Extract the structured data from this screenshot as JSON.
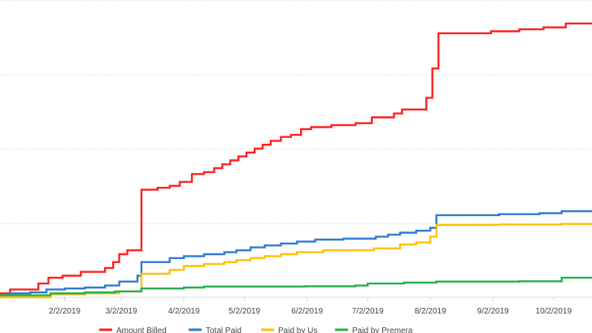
{
  "chart_data": {
    "type": "line",
    "title": "",
    "xlabel": "",
    "ylabel": "",
    "grid": "horizontal",
    "legend_position": "bottom",
    "x_tick_labels": [
      "2/2/2019",
      "3/2/2019",
      "4/2/2019",
      "5/2/2019",
      "6/2/2019",
      "7/2/2019",
      "8/2/2019",
      "9/2/2019",
      "10/2/2019"
    ],
    "x_range": [
      "2019-01-01",
      "2019-10-21"
    ],
    "series": [
      {
        "name": "Amount Billed",
        "color": "#ff2020",
        "style": "step",
        "points": [
          [
            "2019-01-01",
            0.02
          ],
          [
            "2019-01-06",
            0.04
          ],
          [
            "2019-01-20",
            0.07
          ],
          [
            "2019-01-25",
            0.1
          ],
          [
            "2019-02-01",
            0.11
          ],
          [
            "2019-02-10",
            0.13
          ],
          [
            "2019-02-22",
            0.15
          ],
          [
            "2019-02-26",
            0.18
          ],
          [
            "2019-03-01",
            0.22
          ],
          [
            "2019-03-05",
            0.24
          ],
          [
            "2019-03-12",
            0.55
          ],
          [
            "2019-03-20",
            0.56
          ],
          [
            "2019-03-26",
            0.57
          ],
          [
            "2019-03-31",
            0.59
          ],
          [
            "2019-04-06",
            0.63
          ],
          [
            "2019-04-12",
            0.64
          ],
          [
            "2019-04-17",
            0.66
          ],
          [
            "2019-04-21",
            0.68
          ],
          [
            "2019-04-25",
            0.7
          ],
          [
            "2019-04-29",
            0.72
          ],
          [
            "2019-05-03",
            0.74
          ],
          [
            "2019-05-07",
            0.76
          ],
          [
            "2019-05-11",
            0.78
          ],
          [
            "2019-05-15",
            0.8
          ],
          [
            "2019-05-20",
            0.82
          ],
          [
            "2019-05-25",
            0.83
          ],
          [
            "2019-05-30",
            0.86
          ],
          [
            "2019-06-04",
            0.87
          ],
          [
            "2019-06-14",
            0.88
          ],
          [
            "2019-06-26",
            0.89
          ],
          [
            "2019-07-04",
            0.92
          ],
          [
            "2019-07-15",
            0.94
          ],
          [
            "2019-07-19",
            0.96
          ],
          [
            "2019-07-31",
            1.02
          ],
          [
            "2019-08-03",
            1.17
          ],
          [
            "2019-08-06",
            1.35
          ],
          [
            "2019-09-01",
            1.36
          ],
          [
            "2019-09-15",
            1.37
          ],
          [
            "2019-09-27",
            1.38
          ],
          [
            "2019-10-08",
            1.4
          ]
        ]
      },
      {
        "name": "Total Paid",
        "color": "#2f7ad0",
        "style": "step",
        "points": [
          [
            "2019-01-01",
            0.01
          ],
          [
            "2019-01-06",
            0.02
          ],
          [
            "2019-01-16",
            0.025
          ],
          [
            "2019-01-24",
            0.04
          ],
          [
            "2019-02-02",
            0.045
          ],
          [
            "2019-02-12",
            0.05
          ],
          [
            "2019-02-22",
            0.06
          ],
          [
            "2019-03-01",
            0.08
          ],
          [
            "2019-03-10",
            0.11
          ],
          [
            "2019-03-12",
            0.18
          ],
          [
            "2019-03-26",
            0.2
          ],
          [
            "2019-04-02",
            0.21
          ],
          [
            "2019-04-12",
            0.22
          ],
          [
            "2019-04-22",
            0.23
          ],
          [
            "2019-04-28",
            0.24
          ],
          [
            "2019-05-05",
            0.255
          ],
          [
            "2019-05-12",
            0.265
          ],
          [
            "2019-05-20",
            0.275
          ],
          [
            "2019-05-28",
            0.285
          ],
          [
            "2019-06-06",
            0.295
          ],
          [
            "2019-06-20",
            0.3
          ],
          [
            "2019-07-06",
            0.31
          ],
          [
            "2019-07-12",
            0.32
          ],
          [
            "2019-07-18",
            0.33
          ],
          [
            "2019-07-26",
            0.34
          ],
          [
            "2019-08-02",
            0.355
          ],
          [
            "2019-08-05",
            0.42
          ],
          [
            "2019-09-05",
            0.425
          ],
          [
            "2019-09-25",
            0.43
          ],
          [
            "2019-10-06",
            0.44
          ]
        ]
      },
      {
        "name": "Paid by Us",
        "color": "#ffc000",
        "style": "step",
        "points": [
          [
            "2019-01-01",
            0.0
          ],
          [
            "2019-01-26",
            0.015
          ],
          [
            "2019-02-12",
            0.02
          ],
          [
            "2019-03-01",
            0.03
          ],
          [
            "2019-03-12",
            0.12
          ],
          [
            "2019-03-26",
            0.14
          ],
          [
            "2019-04-02",
            0.16
          ],
          [
            "2019-04-12",
            0.17
          ],
          [
            "2019-04-22",
            0.18
          ],
          [
            "2019-04-28",
            0.19
          ],
          [
            "2019-05-05",
            0.2
          ],
          [
            "2019-05-12",
            0.21
          ],
          [
            "2019-05-20",
            0.22
          ],
          [
            "2019-05-28",
            0.23
          ],
          [
            "2019-06-10",
            0.24
          ],
          [
            "2019-07-05",
            0.25
          ],
          [
            "2019-07-18",
            0.27
          ],
          [
            "2019-07-26",
            0.28
          ],
          [
            "2019-08-02",
            0.31
          ],
          [
            "2019-08-05",
            0.37
          ],
          [
            "2019-09-05",
            0.372
          ],
          [
            "2019-10-06",
            0.375
          ]
        ]
      },
      {
        "name": "Paid by Premera",
        "color": "#22b04b",
        "style": "step",
        "points": [
          [
            "2019-01-01",
            0.01
          ],
          [
            "2019-01-26",
            0.02
          ],
          [
            "2019-02-12",
            0.025
          ],
          [
            "2019-02-27",
            0.03
          ],
          [
            "2019-03-12",
            0.045
          ],
          [
            "2019-04-02",
            0.05
          ],
          [
            "2019-04-12",
            0.055
          ],
          [
            "2019-05-01",
            0.055
          ],
          [
            "2019-06-01",
            0.056
          ],
          [
            "2019-06-26",
            0.06
          ],
          [
            "2019-07-02",
            0.07
          ],
          [
            "2019-07-20",
            0.075
          ],
          [
            "2019-08-05",
            0.08
          ],
          [
            "2019-09-15",
            0.082
          ],
          [
            "2019-10-06",
            0.1
          ]
        ]
      }
    ],
    "y_range": [
      0,
      1.52
    ],
    "y_gridlines": [
      0.38,
      0.76,
      1.14,
      1.52
    ]
  }
}
